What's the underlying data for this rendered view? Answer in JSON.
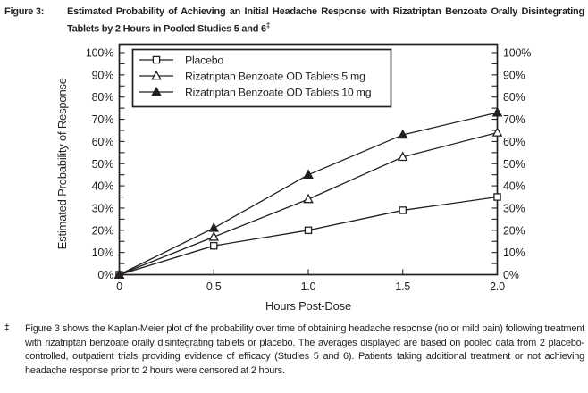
{
  "colors": {
    "ink": "#231f20",
    "background": "#ffffff"
  },
  "header": {
    "figure_label": "Figure 3:",
    "title": "Estimated Probability of Achieving an Initial Headache Response with Rizatriptan Benzoate Orally Disintegrating Tablets by 2 Hours in Pooled Studies 5 and 6",
    "dagger": "‡"
  },
  "chart_data": {
    "type": "line",
    "x": [
      0,
      0.5,
      1.0,
      1.5,
      2.0
    ],
    "x_tick_labels": [
      "0",
      "0.5",
      "1.0",
      "1.5",
      "2.0"
    ],
    "y_tick_labels": [
      "0%",
      "10%",
      "20%",
      "30%",
      "40%",
      "50%",
      "60%",
      "70%",
      "80%",
      "90%",
      "100%"
    ],
    "ylim": [
      0,
      100
    ],
    "ytick_major_step": 10,
    "ytick_minor_step": 5,
    "xlabel": "Hours Post-Dose",
    "ylabel": "Estimated Probability of Response",
    "dual_y_axis": true,
    "grid": false,
    "legend_position": "top-left",
    "series": [
      {
        "name": "Placebo",
        "marker": "square-open",
        "values": [
          0,
          13,
          20,
          29,
          35
        ]
      },
      {
        "name": "Rizatriptan Benzoate OD Tablets 5 mg",
        "marker": "triangle-open",
        "values": [
          0,
          17,
          34,
          53,
          64
        ]
      },
      {
        "name": "Rizatriptan Benzoate OD Tablets 10 mg",
        "marker": "triangle-filled",
        "values": [
          0,
          21,
          45,
          63,
          73
        ]
      }
    ]
  },
  "footnote": {
    "marker": "‡",
    "text": "Figure 3 shows the Kaplan-Meier plot of the probability over time of obtaining headache response (no or mild pain) following treatment with rizatriptan benzoate orally disintegrating tablets or placebo. The averages displayed are based on pooled data from 2 placebo-controlled, outpatient trials providing evidence of efficacy (Studies 5 and 6). Patients taking additional treatment or not achieving headache response prior to 2 hours were censored at 2 hours."
  }
}
